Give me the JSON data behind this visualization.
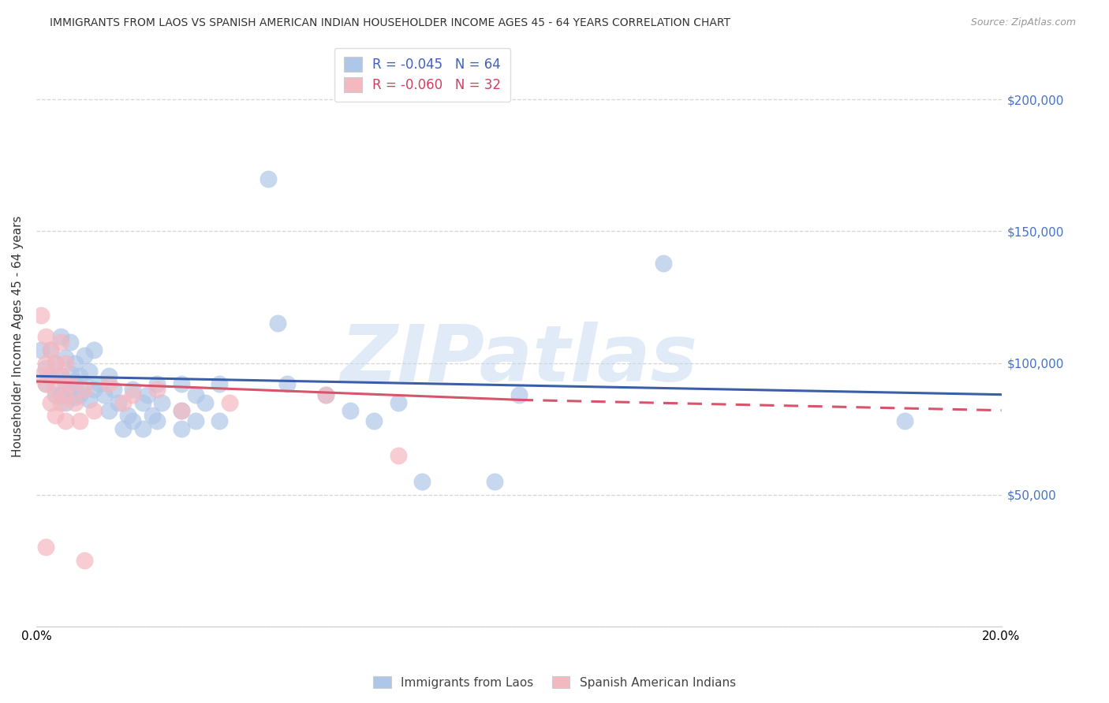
{
  "title": "IMMIGRANTS FROM LAOS VS SPANISH AMERICAN INDIAN HOUSEHOLDER INCOME AGES 45 - 64 YEARS CORRELATION CHART",
  "source": "Source: ZipAtlas.com",
  "ylabel": "Householder Income Ages 45 - 64 years",
  "xlim": [
    0,
    0.2
  ],
  "ylim": [
    0,
    220000
  ],
  "yticks": [
    0,
    50000,
    100000,
    150000,
    200000
  ],
  "ytick_labels": [
    "",
    "$50,000",
    "$100,000",
    "$150,000",
    "$200,000"
  ],
  "xticks": [
    0.0,
    0.025,
    0.05,
    0.075,
    0.1,
    0.125,
    0.15,
    0.175,
    0.2
  ],
  "blue_R": -0.045,
  "blue_N": 64,
  "pink_R": -0.06,
  "pink_N": 32,
  "watermark": "ZIPatlas",
  "blue_color": "#aec6e8",
  "pink_color": "#f4b8c1",
  "blue_line_color": "#3a5fa8",
  "pink_line_color": "#d9536a",
  "blue_line": {
    "x0": 0.0,
    "y0": 95000,
    "x1": 0.2,
    "y1": 88000
  },
  "pink_line_solid": {
    "x0": 0.0,
    "y0": 93000,
    "x1": 0.1,
    "y1": 86000
  },
  "pink_line_dashed": {
    "x0": 0.1,
    "y0": 86000,
    "x1": 0.2,
    "y1": 82000
  },
  "blue_scatter": [
    [
      0.001,
      105000
    ],
    [
      0.002,
      98000
    ],
    [
      0.002,
      92000
    ],
    [
      0.003,
      105000
    ],
    [
      0.003,
      95000
    ],
    [
      0.004,
      100000
    ],
    [
      0.004,
      88000
    ],
    [
      0.005,
      110000
    ],
    [
      0.005,
      95000
    ],
    [
      0.005,
      88000
    ],
    [
      0.006,
      102000
    ],
    [
      0.006,
      92000
    ],
    [
      0.006,
      85000
    ],
    [
      0.007,
      108000
    ],
    [
      0.007,
      96000
    ],
    [
      0.007,
      90000
    ],
    [
      0.008,
      100000
    ],
    [
      0.008,
      93000
    ],
    [
      0.008,
      87000
    ],
    [
      0.009,
      95000
    ],
    [
      0.009,
      88000
    ],
    [
      0.01,
      103000
    ],
    [
      0.01,
      92000
    ],
    [
      0.011,
      97000
    ],
    [
      0.011,
      86000
    ],
    [
      0.012,
      105000
    ],
    [
      0.012,
      90000
    ],
    [
      0.013,
      92000
    ],
    [
      0.014,
      88000
    ],
    [
      0.015,
      95000
    ],
    [
      0.015,
      82000
    ],
    [
      0.016,
      90000
    ],
    [
      0.017,
      85000
    ],
    [
      0.018,
      75000
    ],
    [
      0.019,
      80000
    ],
    [
      0.02,
      90000
    ],
    [
      0.02,
      78000
    ],
    [
      0.022,
      85000
    ],
    [
      0.022,
      75000
    ],
    [
      0.023,
      88000
    ],
    [
      0.024,
      80000
    ],
    [
      0.025,
      92000
    ],
    [
      0.025,
      78000
    ],
    [
      0.026,
      85000
    ],
    [
      0.03,
      92000
    ],
    [
      0.03,
      82000
    ],
    [
      0.03,
      75000
    ],
    [
      0.033,
      88000
    ],
    [
      0.033,
      78000
    ],
    [
      0.035,
      85000
    ],
    [
      0.038,
      92000
    ],
    [
      0.038,
      78000
    ],
    [
      0.048,
      170000
    ],
    [
      0.05,
      115000
    ],
    [
      0.052,
      92000
    ],
    [
      0.06,
      88000
    ],
    [
      0.065,
      82000
    ],
    [
      0.07,
      78000
    ],
    [
      0.075,
      85000
    ],
    [
      0.08,
      55000
    ],
    [
      0.095,
      55000
    ],
    [
      0.1,
      88000
    ],
    [
      0.13,
      138000
    ],
    [
      0.18,
      78000
    ]
  ],
  "pink_scatter": [
    [
      0.001,
      118000
    ],
    [
      0.001,
      95000
    ],
    [
      0.002,
      110000
    ],
    [
      0.002,
      100000
    ],
    [
      0.002,
      92000
    ],
    [
      0.003,
      105000
    ],
    [
      0.003,
      95000
    ],
    [
      0.003,
      85000
    ],
    [
      0.004,
      100000
    ],
    [
      0.004,
      90000
    ],
    [
      0.004,
      80000
    ],
    [
      0.005,
      108000
    ],
    [
      0.005,
      95000
    ],
    [
      0.005,
      85000
    ],
    [
      0.006,
      100000
    ],
    [
      0.006,
      88000
    ],
    [
      0.006,
      78000
    ],
    [
      0.007,
      92000
    ],
    [
      0.008,
      85000
    ],
    [
      0.009,
      78000
    ],
    [
      0.01,
      90000
    ],
    [
      0.012,
      82000
    ],
    [
      0.015,
      92000
    ],
    [
      0.018,
      85000
    ],
    [
      0.02,
      88000
    ],
    [
      0.025,
      90000
    ],
    [
      0.03,
      82000
    ],
    [
      0.04,
      85000
    ],
    [
      0.06,
      88000
    ],
    [
      0.075,
      65000
    ],
    [
      0.002,
      30000
    ],
    [
      0.01,
      25000
    ]
  ]
}
